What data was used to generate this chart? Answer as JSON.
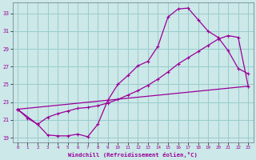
{
  "xlabel": "Windchill (Refroidissement éolien,°C)",
  "bg_color": "#cce8e8",
  "line_color": "#990099",
  "grid_color": "#99cccc",
  "ylim": [
    18.5,
    34.2
  ],
  "xlim": [
    -0.5,
    23.5
  ],
  "yticks": [
    19,
    21,
    23,
    25,
    27,
    29,
    31,
    33
  ],
  "xticks": [
    0,
    1,
    2,
    3,
    4,
    5,
    6,
    7,
    8,
    9,
    10,
    11,
    12,
    13,
    14,
    15,
    16,
    17,
    18,
    19,
    20,
    21,
    22,
    23
  ],
  "line1_x": [
    0,
    1,
    2,
    3,
    4,
    5,
    6,
    7,
    8,
    9,
    10,
    11,
    12,
    13,
    14,
    15,
    16,
    17,
    18,
    19,
    20,
    21,
    22,
    23
  ],
  "line1_y": [
    22.2,
    21.2,
    20.5,
    19.3,
    19.2,
    19.2,
    19.4,
    19.1,
    20.5,
    23.2,
    25.0,
    26.0,
    27.1,
    27.6,
    29.3,
    32.6,
    33.5,
    33.6,
    32.3,
    31.0,
    30.3,
    28.8,
    26.8,
    26.2
  ],
  "line2_x": [
    0,
    2,
    3,
    4,
    5,
    6,
    7,
    8,
    9,
    10,
    11,
    12,
    13,
    14,
    15,
    16,
    17,
    18,
    19,
    20,
    21,
    22,
    23
  ],
  "line2_y": [
    22.2,
    20.5,
    21.3,
    21.7,
    22.0,
    22.3,
    22.4,
    22.6,
    22.9,
    23.3,
    23.8,
    24.3,
    24.9,
    25.6,
    26.4,
    27.3,
    28.0,
    28.7,
    29.4,
    30.1,
    30.5,
    30.3,
    24.8
  ],
  "line3_x": [
    0,
    23
  ],
  "line3_y": [
    22.2,
    24.8
  ]
}
